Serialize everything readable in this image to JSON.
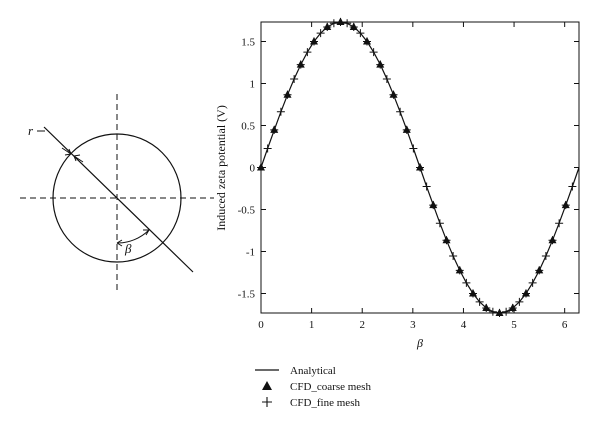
{
  "diagram": {
    "radius_label": "r",
    "angle_label": "β"
  },
  "chart_data": {
    "type": "line",
    "xlabel": "β",
    "ylabel": "Induced zeta potential (V)",
    "xlim": [
      0,
      6.2832
    ],
    "ylim": [
      -1.732,
      1.732
    ],
    "x_ticks": [
      0,
      1,
      2,
      3,
      4,
      5,
      6
    ],
    "x_tick_labels": [
      "0",
      "1",
      "2",
      "3",
      "4",
      "5",
      "6"
    ],
    "y_ticks": [
      -1.5,
      -1,
      -0.5,
      0,
      0.5,
      1,
      1.5
    ],
    "y_tick_labels": [
      "-1.5",
      "-1",
      "-0.5",
      "0",
      "0.5",
      "1",
      "1.5"
    ],
    "grid": false,
    "legend_position": "below",
    "legend": [
      "Analytical",
      "CFD_coarse mesh",
      "CFD_fine mesh"
    ],
    "series": [
      {
        "name": "Analytical",
        "style": "line",
        "x": [
          0,
          0.1309,
          0.2618,
          0.3927,
          0.5236,
          0.6545,
          0.7854,
          0.9163,
          1.0472,
          1.1781,
          1.309,
          1.4399,
          1.5708,
          1.7017,
          1.8326,
          1.9635,
          2.0944,
          2.2253,
          2.3562,
          2.4871,
          2.618,
          2.7489,
          2.8798,
          3.0107,
          3.1416,
          3.2725,
          3.4034,
          3.5343,
          3.6652,
          3.7961,
          3.927,
          4.0579,
          4.1888,
          4.3197,
          4.4506,
          4.5815,
          4.7124,
          4.8433,
          4.9742,
          5.1051,
          5.236,
          5.3669,
          5.4978,
          5.6287,
          5.7596,
          5.8905,
          6.0214,
          6.1523,
          6.2832
        ],
        "values": [
          0,
          0.226,
          0.448,
          0.663,
          0.866,
          1.054,
          1.225,
          1.374,
          1.5,
          1.6,
          1.673,
          1.717,
          1.732,
          1.717,
          1.673,
          1.6,
          1.5,
          1.374,
          1.225,
          1.054,
          0.866,
          0.663,
          0.448,
          0.226,
          0,
          -0.226,
          -0.448,
          -0.663,
          -0.866,
          -1.054,
          -1.225,
          -1.374,
          -1.5,
          -1.6,
          -1.673,
          -1.717,
          -1.732,
          -1.717,
          -1.673,
          -1.6,
          -1.5,
          -1.374,
          -1.225,
          -1.054,
          -0.866,
          -0.663,
          -0.448,
          -0.226,
          0
        ]
      },
      {
        "name": "CFD_coarse mesh",
        "style": "triangle",
        "x": [
          0,
          0.2618,
          0.5236,
          0.7854,
          1.0472,
          1.309,
          1.5708,
          1.8326,
          2.0944,
          2.3562,
          2.618,
          2.8798,
          3.1416,
          3.4034,
          3.6652,
          3.927,
          4.1888,
          4.4506,
          4.7124,
          4.9742,
          5.236,
          5.4978,
          5.7596,
          6.0214
        ],
        "values": [
          0,
          0.448,
          0.866,
          1.225,
          1.5,
          1.673,
          1.732,
          1.673,
          1.5,
          1.225,
          0.866,
          0.448,
          0,
          -0.448,
          -0.866,
          -1.225,
          -1.5,
          -1.673,
          -1.732,
          -1.673,
          -1.5,
          -1.225,
          -0.866,
          -0.448
        ]
      },
      {
        "name": "CFD_fine mesh",
        "style": "plus",
        "x": [
          0,
          0.1309,
          0.2618,
          0.3927,
          0.5236,
          0.6545,
          0.7854,
          0.9163,
          1.0472,
          1.1781,
          1.309,
          1.4399,
          1.5708,
          1.7017,
          1.8326,
          1.9635,
          2.0944,
          2.2253,
          2.3562,
          2.4871,
          2.618,
          2.7489,
          2.8798,
          3.0107,
          3.1416,
          3.2725,
          3.4034,
          3.5343,
          3.6652,
          3.7961,
          3.927,
          4.0579,
          4.1888,
          4.3197,
          4.4506,
          4.5815,
          4.7124,
          4.8433,
          4.9742,
          5.1051,
          5.236,
          5.3669,
          5.4978,
          5.6287,
          5.7596,
          5.8905,
          6.0214,
          6.1523
        ],
        "values": [
          0,
          0.226,
          0.448,
          0.663,
          0.866,
          1.054,
          1.225,
          1.374,
          1.5,
          1.6,
          1.673,
          1.717,
          1.732,
          1.717,
          1.673,
          1.6,
          1.5,
          1.374,
          1.225,
          1.054,
          0.866,
          0.663,
          0.448,
          0.226,
          0,
          -0.226,
          -0.448,
          -0.663,
          -0.866,
          -1.054,
          -1.225,
          -1.374,
          -1.5,
          -1.6,
          -1.673,
          -1.717,
          -1.732,
          -1.717,
          -1.673,
          -1.6,
          -1.5,
          -1.374,
          -1.225,
          -1.054,
          -0.866,
          -0.663,
          -0.448,
          -0.226
        ]
      }
    ]
  }
}
